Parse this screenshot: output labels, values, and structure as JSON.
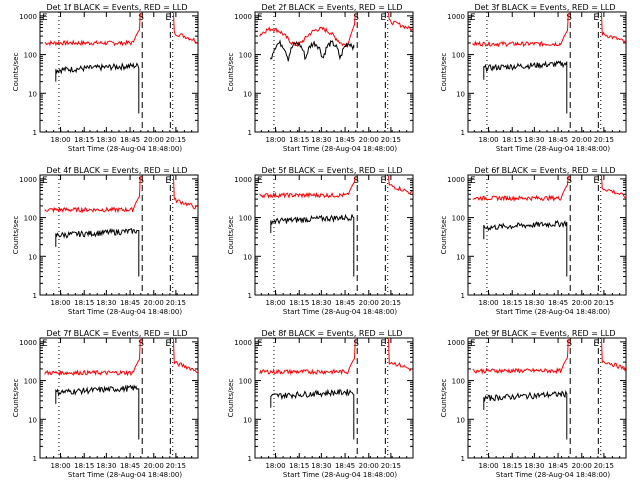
{
  "colors": {
    "events": "#000000",
    "lld": "#ff0000",
    "axis": "#000000"
  },
  "common": {
    "type": "line",
    "ylabel": "Counts/sec",
    "xlabel": "Start Time (28-Aug-04 18:48:00)",
    "y_scale": "log",
    "y_ticks": [
      "1",
      "10",
      "100",
      "1000"
    ],
    "x_ticks": [
      "18:00",
      "18:15",
      "18:30",
      "18:45",
      "20:00",
      "20:15"
    ],
    "marker_labels": [
      "E",
      "S",
      "E"
    ]
  },
  "chart_data": [
    {
      "title": "Det 1f BLACK = Events, RED = LLD",
      "lld_level": 200,
      "events_level": 40,
      "variant": "a"
    },
    {
      "title": "Det 2f BLACK = Events, RED = LLD",
      "lld_level": 400,
      "events_level": 150,
      "variant": "b"
    },
    {
      "title": "Det 3f BLACK = Events, RED = LLD",
      "lld_level": 190,
      "events_level": 45,
      "variant": "a"
    },
    {
      "title": "Det 4f BLACK = Events, RED = LLD",
      "lld_level": 160,
      "events_level": 35,
      "variant": "a"
    },
    {
      "title": "Det 5f BLACK = Events, RED = LLD",
      "lld_level": 380,
      "events_level": 80,
      "variant": "c"
    },
    {
      "title": "Det 6f BLACK = Events, RED = LLD",
      "lld_level": 320,
      "events_level": 55,
      "variant": "c"
    },
    {
      "title": "Det 7f BLACK = Events, RED = LLD",
      "lld_level": 160,
      "events_level": 50,
      "variant": "a"
    },
    {
      "title": "Det 8f BLACK = Events, RED = LLD",
      "lld_level": 170,
      "events_level": 40,
      "variant": "a"
    },
    {
      "title": "Det 9f BLACK = Events, RED = LLD",
      "lld_level": 180,
      "events_level": 35,
      "variant": "a"
    }
  ]
}
